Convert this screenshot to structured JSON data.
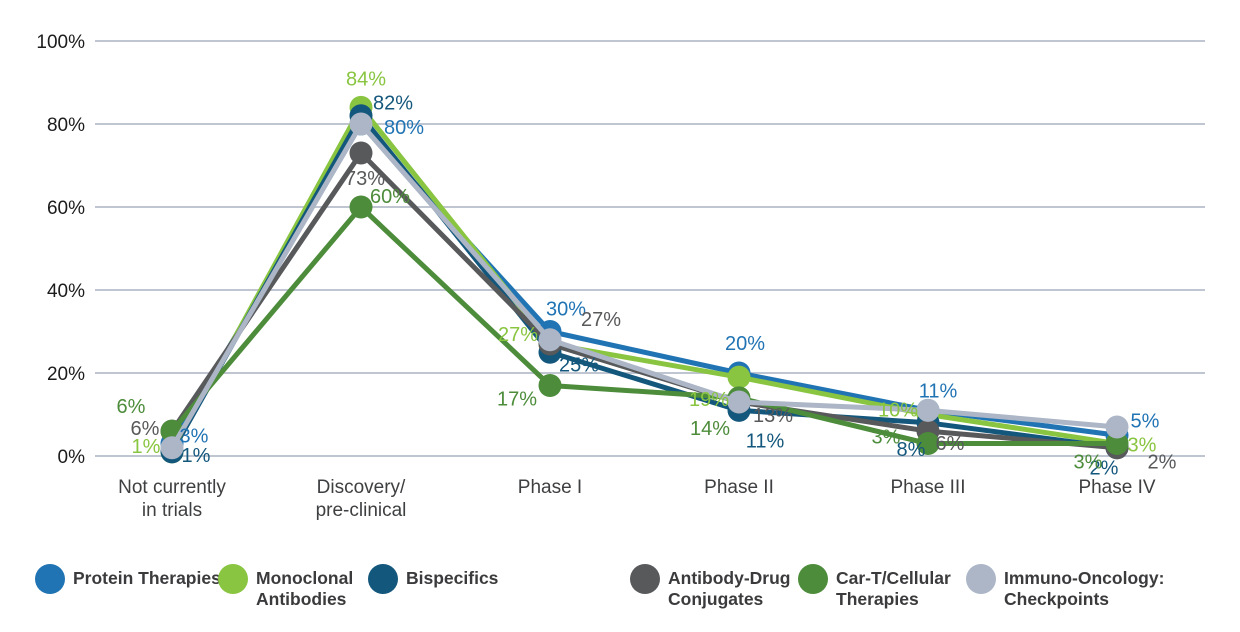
{
  "chart_data": {
    "type": "line",
    "title": "",
    "xlabel": "",
    "ylabel": "",
    "ylim": [
      0,
      100
    ],
    "grid": true,
    "legend_position": "bottom",
    "categories": [
      "Not currently\nin trials",
      "Discovery/\npre-clinical",
      "Phase I",
      "Phase II",
      "Phase III",
      "Phase IV"
    ],
    "yticks": [
      {
        "label": "0%",
        "value": 0
      },
      {
        "label": "20%",
        "value": 20
      },
      {
        "label": "40%",
        "value": 40
      },
      {
        "label": "60%",
        "value": 60
      },
      {
        "label": "80%",
        "value": 80
      },
      {
        "label": "100%",
        "value": 100
      }
    ],
    "series": [
      {
        "name": "Protein Therapies",
        "color": "#2174B4",
        "values": [
          3,
          80,
          30,
          20,
          11,
          5
        ],
        "labels": [
          {
            "text": "3%",
            "dx": 22,
            "dy": -1
          },
          {
            "text": "80%",
            "dx": 43,
            "dy": 10
          },
          {
            "text": "30%",
            "dx": 16,
            "dy": -16
          },
          {
            "text": "20%",
            "dx": 6,
            "dy": -23
          },
          {
            "text": "11%",
            "dx": 10,
            "dy": -13
          },
          {
            "text": "5%",
            "dx": 28,
            "dy": -8
          }
        ]
      },
      {
        "name": "Monoclonal Antibodies",
        "color": "#89C540",
        "values": [
          1,
          84,
          27,
          19,
          10,
          3
        ],
        "labels": [
          {
            "text": "1%",
            "dx": -26,
            "dy": 1
          },
          {
            "text": "84%",
            "dx": 5,
            "dy": -22
          },
          {
            "text": "27%",
            "dx": -32,
            "dy": -3
          },
          {
            "text": "19%",
            "dx": -30,
            "dy": 29
          },
          {
            "text": "10%",
            "dx": -30,
            "dy": 2
          },
          {
            "text": "3%",
            "dx": 25,
            "dy": 8
          }
        ]
      },
      {
        "name": "Bispecifics",
        "color": "#14577C",
        "values": [
          1,
          82,
          25,
          11,
          8,
          2
        ],
        "labels": [
          {
            "text": "1%",
            "dx": 24,
            "dy": 10
          },
          {
            "text": "82%",
            "dx": 32,
            "dy": -6
          },
          {
            "text": "25%",
            "dx": 29,
            "dy": 19
          },
          {
            "text": "11%",
            "dx": 26,
            "dy": 37
          },
          {
            "text": "8%",
            "dx": -17,
            "dy": 33
          },
          {
            "text": "2%",
            "dx": -13,
            "dy": 27
          }
        ]
      },
      {
        "name": "Antibody-Drug Conjugates",
        "color": "#58595B",
        "values": [
          6,
          73,
          27,
          13,
          6,
          2
        ],
        "labels": [
          {
            "text": "6%",
            "dx": -27,
            "dy": 4
          },
          {
            "text": "73%",
            "dx": 4,
            "dy": 32
          },
          {
            "text": "27%",
            "dx": 51,
            "dy": -18
          },
          {
            "text": "13%",
            "dx": 34,
            "dy": 20
          },
          {
            "text": "6%",
            "dx": 22,
            "dy": 19
          },
          {
            "text": "2%",
            "dx": 45,
            "dy": 21
          }
        ]
      },
      {
        "name": "Car-T/Cellular Therapies",
        "color": "#4C8C3A",
        "values": [
          6,
          60,
          17,
          14,
          3,
          3
        ],
        "labels": [
          {
            "text": "6%",
            "dx": -41,
            "dy": -18
          },
          {
            "text": "60%",
            "dx": 29,
            "dy": -4
          },
          {
            "text": "17%",
            "dx": -33,
            "dy": 20
          },
          {
            "text": "14%",
            "dx": -29,
            "dy": 37
          },
          {
            "text": "3%",
            "dx": -42,
            "dy": 0
          },
          {
            "text": "3%",
            "dx": -29,
            "dy": 25
          }
        ]
      },
      {
        "name": "Immuno-Oncology: Checkpoints",
        "color": "#ACB6C6",
        "values": [
          2,
          80,
          28,
          13,
          11,
          7
        ],
        "labels": []
      }
    ]
  },
  "legend": {
    "items": [
      {
        "label": "Protein Therapies",
        "color": "#2174B4"
      },
      {
        "label": "Monoclonal\nAntibodies",
        "color": "#89C540"
      },
      {
        "label": "Bispecifics",
        "color": "#14577C"
      },
      {
        "label": "Antibody-Drug\nConjugates",
        "color": "#58595B"
      },
      {
        "label": "Car-T/Cellular\nTherapies",
        "color": "#4C8C3A"
      },
      {
        "label": "Immuno-Oncology:\nCheckpoints",
        "color": "#ACB6C6"
      }
    ]
  }
}
